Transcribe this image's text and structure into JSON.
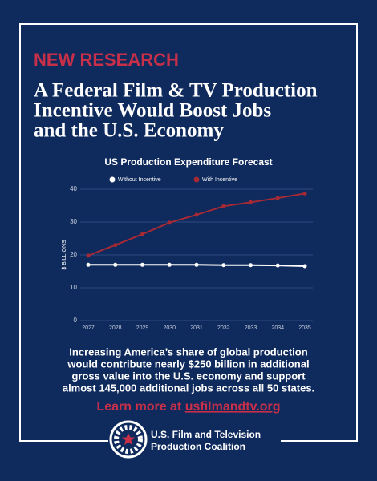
{
  "header": {
    "kicker": "NEW RESEARCH",
    "title_lines": [
      "A Federal Film & TV Production",
      "Incentive Would Boost Jobs",
      "and the U.S. Economy"
    ]
  },
  "chart_data": {
    "type": "line",
    "title": "US Production Expenditure Forecast",
    "y_label": "$ BILLIONS",
    "categories": [
      "2027",
      "2028",
      "2029",
      "2030",
      "2031",
      "2032",
      "2033",
      "2034",
      "2035"
    ],
    "series": [
      {
        "name": "Without Incentive",
        "color": "#ffffff",
        "values": [
          17,
          17,
          17,
          17,
          17,
          16.9,
          16.9,
          16.8,
          16.6
        ]
      },
      {
        "name": "With Incentive",
        "color": "#a52a35",
        "values": [
          19.8,
          23,
          26.3,
          29.8,
          32.2,
          34.8,
          36,
          37.3,
          38.7
        ]
      }
    ],
    "ylim": [
      0,
      40
    ],
    "yticks": [
      0,
      10,
      20,
      30,
      40
    ],
    "grid": true,
    "legend": "top"
  },
  "body": {
    "lines": [
      "Increasing America’s share of global production",
      "would contribute nearly $250 billion in additional",
      "gross value into the U.S. economy and support",
      "almost 145,000 additional jobs across all 50 states."
    ]
  },
  "cta": {
    "prefix": "Learn more at ",
    "link": "usfilmandtv.org"
  },
  "logo": {
    "lines": [
      "U.S. Film and Television",
      "Production Coalition"
    ]
  }
}
